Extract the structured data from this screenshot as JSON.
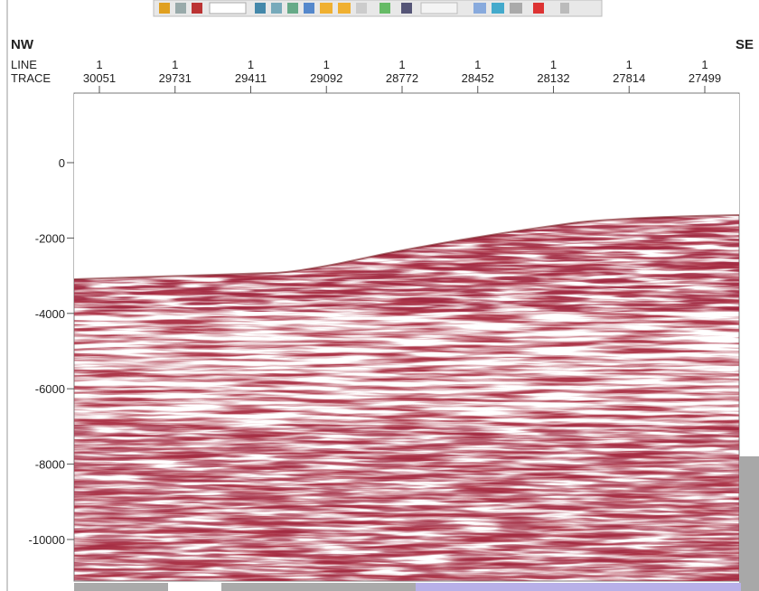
{
  "header": {
    "left": "NW",
    "right": "SE"
  },
  "axis": {
    "row_labels": [
      "LINE",
      "TRACE"
    ],
    "traces": [
      {
        "line": "1",
        "trace": "30051"
      },
      {
        "line": "1",
        "trace": "29731"
      },
      {
        "line": "1",
        "trace": "29411"
      },
      {
        "line": "1",
        "trace": "29092"
      },
      {
        "line": "1",
        "trace": "28772"
      },
      {
        "line": "1",
        "trace": "28452"
      },
      {
        "line": "1",
        "trace": "28132"
      },
      {
        "line": "1",
        "trace": "27814"
      },
      {
        "line": "1",
        "trace": "27499"
      }
    ],
    "depth_ticks": [
      "0",
      "-2000",
      "-4000",
      "-6000",
      "-8000",
      "-10000"
    ]
  }
}
